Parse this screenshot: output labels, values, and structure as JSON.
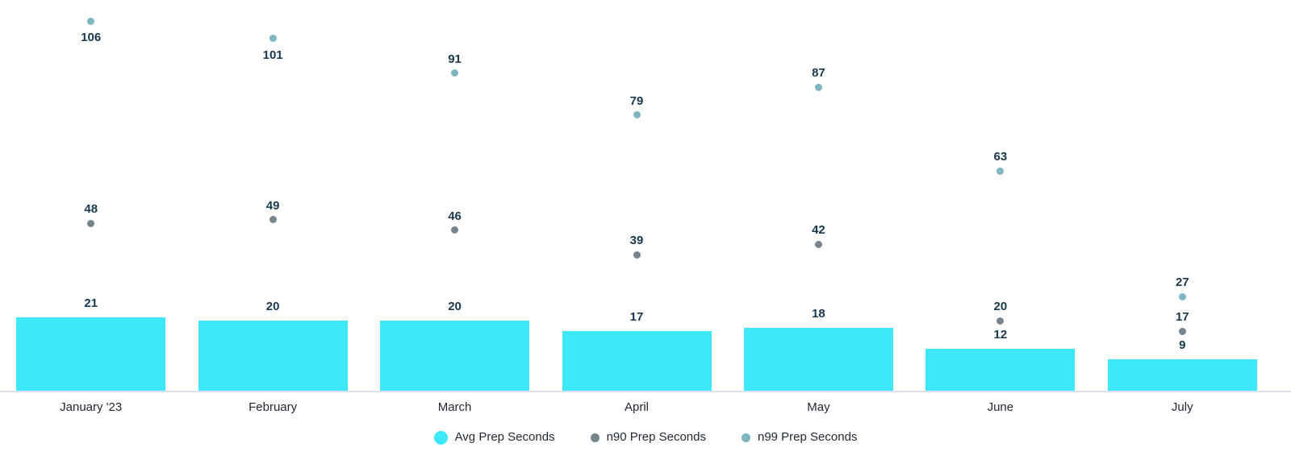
{
  "chart_data": {
    "type": "bar",
    "title": "",
    "categories": [
      "January '23",
      "February",
      "March",
      "April",
      "May",
      "June",
      "July"
    ],
    "series": [
      {
        "name": "Avg Prep Seconds",
        "kind": "bar",
        "color": "#3de8fa",
        "values": [
          21,
          20,
          20,
          17,
          18,
          12,
          9
        ]
      },
      {
        "name": "n90 Prep Seconds",
        "kind": "point",
        "color": "#76848e",
        "values": [
          48,
          49,
          46,
          39,
          42,
          20,
          17
        ]
      },
      {
        "name": "n99 Prep Seconds",
        "kind": "point",
        "color": "#7db6c1",
        "values": [
          106,
          101,
          91,
          79,
          87,
          63,
          27
        ]
      }
    ],
    "ylim": [
      0,
      112
    ],
    "xlabel": "",
    "ylabel": "",
    "grid": false,
    "y_axis_visible": false,
    "value_labels": true,
    "legend_position": "bottom",
    "colors": {
      "value_label": "#17384f",
      "axis_label": "#1f2630",
      "legend_label": "#222a33",
      "axis_line": "#dce1ee",
      "background": "#ffffff"
    }
  }
}
